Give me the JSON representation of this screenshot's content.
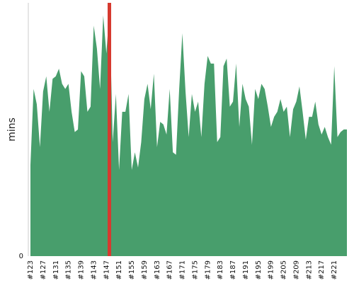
{
  "chart_data": {
    "type": "area",
    "y_label": "mins",
    "color": "#489e6c",
    "ylim": [
      0,
      100
    ],
    "yticks": [
      0
    ],
    "categories": [
      "#123",
      null,
      null,
      null,
      "#127",
      null,
      null,
      null,
      "#131",
      null,
      null,
      null,
      "#135",
      null,
      null,
      null,
      "#139",
      null,
      null,
      null,
      "#143",
      null,
      null,
      null,
      "#147",
      null,
      null,
      null,
      "#151",
      null,
      null,
      null,
      "#155",
      null,
      null,
      null,
      "#159",
      null,
      null,
      null,
      "#163",
      null,
      null,
      null,
      "#167",
      null,
      null,
      null,
      "#171",
      null,
      null,
      null,
      "#175",
      null,
      null,
      null,
      "#179",
      null,
      null,
      null,
      "#183",
      null,
      null,
      null,
      "#187",
      null,
      null,
      null,
      "#191",
      null,
      null,
      null,
      "#195",
      null,
      null,
      null,
      "#199",
      null,
      null,
      null,
      "#205",
      null,
      null,
      null,
      "#209",
      null,
      null,
      null,
      "#213",
      null,
      null,
      null,
      "#217",
      null,
      null,
      null,
      "#221",
      null,
      null,
      null,
      null
    ],
    "values": [
      36,
      66,
      60,
      43,
      65,
      71,
      57,
      70,
      71,
      74,
      68,
      66,
      68,
      57,
      49,
      50,
      73,
      71,
      57,
      59,
      91,
      82,
      66,
      95,
      80,
      98,
      45,
      64,
      34,
      57,
      57,
      64,
      34,
      41,
      35,
      45,
      62,
      68,
      58,
      72,
      43,
      53,
      52,
      48,
      66,
      41,
      40,
      66,
      88,
      65,
      47,
      64,
      57,
      61,
      47,
      68,
      79,
      76,
      76,
      45,
      47,
      75,
      78,
      59,
      61,
      76,
      51,
      68,
      62,
      59,
      44,
      66,
      62,
      68,
      66,
      59,
      51,
      55,
      57,
      62,
      57,
      59,
      47,
      58,
      61,
      67,
      57,
      46,
      55,
      55,
      61,
      52,
      48,
      51,
      47,
      44,
      75,
      47,
      49,
      50,
      50
    ]
  }
}
